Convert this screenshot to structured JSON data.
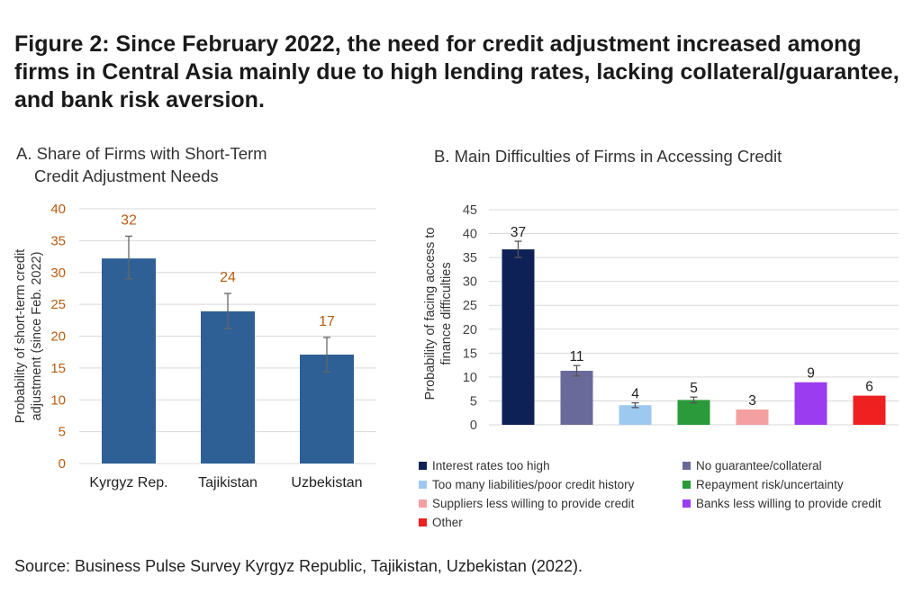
{
  "figure_title": "Figure 2: Since February 2022, the need for credit adjustment increased among firms in Central Asia mainly due to high lending rates, lacking collateral/guarantee, and bank risk aversion.",
  "source": "Source: Business Pulse Survey Kyrgyz Republic, Tajikistan, Uzbekistan (2022).",
  "chart_data": [
    {
      "type": "bar",
      "title_line1": "A. Share of Firms with Short-Term",
      "title_line2": "Credit Adjustment Needs",
      "ylabel_line1": "Probability of short-term credit",
      "ylabel_line2": "adjustment (since Feb. 2022)",
      "xlabel": "",
      "categories": [
        "Kyrgyz Rep.",
        "Tajikistan",
        "Uzbekistan"
      ],
      "values": [
        32.2,
        23.9,
        17.1
      ],
      "data_labels": [
        "32",
        "24",
        "17"
      ],
      "error_low": [
        29.0,
        21.2,
        14.4
      ],
      "error_high": [
        35.7,
        26.7,
        19.8
      ],
      "ylim": [
        0,
        40
      ],
      "yticks": [
        0,
        5,
        10,
        15,
        20,
        25,
        30,
        35,
        40
      ],
      "grid": true,
      "bar_color": "#2e6096",
      "label_color": "#b85c10",
      "error_color": "#666666"
    },
    {
      "type": "bar",
      "title": "B. Main Difficulties of Firms in Accessing Credit",
      "ylabel_line1": "Probability of facing access to",
      "ylabel_line2": "finance difficulties",
      "xlabel": "",
      "categories": [
        "Interest rates too high",
        "No guarantee/collateral",
        "Too many liabilities/poor credit history",
        "Repayment risk/uncertainty",
        "Suppliers less willing to provide credit",
        "Banks less willing to provide credit",
        "Other"
      ],
      "values": [
        36.7,
        11.3,
        4.1,
        5.2,
        3.2,
        8.9,
        6.1
      ],
      "data_labels": [
        "37",
        "11",
        "4",
        "5",
        "3",
        "9",
        "6"
      ],
      "colors": [
        "#0d2157",
        "#6a6a9a",
        "#9dc9f0",
        "#2a9a3a",
        "#f4a0a0",
        "#9b3cf0",
        "#ee2020"
      ],
      "error_low": [
        35.0,
        10.2,
        3.6,
        4.6,
        null,
        null,
        null
      ],
      "error_high": [
        38.4,
        12.4,
        4.6,
        5.8,
        null,
        null,
        null
      ],
      "ylim": [
        0,
        45
      ],
      "yticks": [
        0,
        5,
        10,
        15,
        20,
        25,
        30,
        35,
        40,
        45
      ],
      "grid": true,
      "legend_position": "bottom",
      "error_color": "#555555"
    }
  ]
}
